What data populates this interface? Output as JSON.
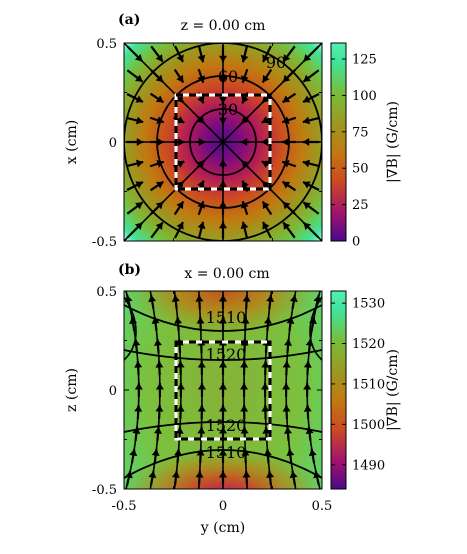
{
  "chart_data": [
    {
      "type": "heatmap",
      "panel_label": "(a)",
      "title": "z = 0.00 cm",
      "xlabel": "",
      "ylabel": "x (cm)",
      "xlim": [
        -0.5,
        0.5
      ],
      "ylim": [
        -0.5,
        0.5
      ],
      "x_ticks": [],
      "y_ticks": [
        "0.5",
        "0",
        "-0.5"
      ],
      "colorbar": {
        "label": "|∇B| (G/cm)",
        "range": [
          0,
          136
        ],
        "ticks": [
          "0",
          "25",
          "50",
          "75",
          "100",
          "125"
        ],
        "tick_values": [
          0,
          25,
          50,
          75,
          100,
          125
        ]
      },
      "field": {
        "kind": "radial",
        "center": [
          0,
          0
        ],
        "gradient_per_cm": 180
      },
      "contours": [
        {
          "label": "30",
          "value": 30
        },
        {
          "label": "60",
          "value": 60
        },
        {
          "label": "90",
          "value": 90
        }
      ],
      "dashed_box": {
        "x": [
          -0.25,
          0.25
        ],
        "y": [
          -0.25,
          0.25
        ]
      },
      "arrows": "radially inward field lines"
    },
    {
      "type": "heatmap",
      "panel_label": "(b)",
      "title": "x = 0.00 cm",
      "xlabel": "y (cm)",
      "ylabel": "z (cm)",
      "xlim": [
        -0.5,
        0.5
      ],
      "ylim": [
        -0.5,
        0.5
      ],
      "x_ticks": [
        "-0.5",
        "0",
        "0.5"
      ],
      "y_ticks": [
        "0.5",
        "0",
        "-0.5"
      ],
      "colorbar": {
        "label": "|∇B| (G/cm)",
        "range": [
          1484,
          1533
        ],
        "ticks": [
          "1490",
          "1500",
          "1510",
          "1520",
          "1530"
        ],
        "tick_values": [
          1490,
          1500,
          1510,
          1520,
          1530
        ]
      },
      "field": {
        "kind": "axial",
        "mean": 1515
      },
      "contours": [
        {
          "label": "1510",
          "value": 1510,
          "position": "upper"
        },
        {
          "label": "1520",
          "value": 1520,
          "position": "upper"
        },
        {
          "label": "1520",
          "value": 1520,
          "position": "lower"
        },
        {
          "label": "1510",
          "value": 1510,
          "position": "lower"
        }
      ],
      "dashed_box": {
        "x": [
          -0.25,
          0.25
        ],
        "y": [
          -0.25,
          0.25
        ]
      },
      "arrows": "upward field lines"
    }
  ],
  "colors": {
    "colormap": [
      "#4a0a8a",
      "#a0126e",
      "#cc4a22",
      "#c07a10",
      "#9a9a22",
      "#78be3c",
      "#40e49a",
      "#c0ffe4"
    ],
    "axis": "#000000",
    "box": "#ffffff"
  }
}
